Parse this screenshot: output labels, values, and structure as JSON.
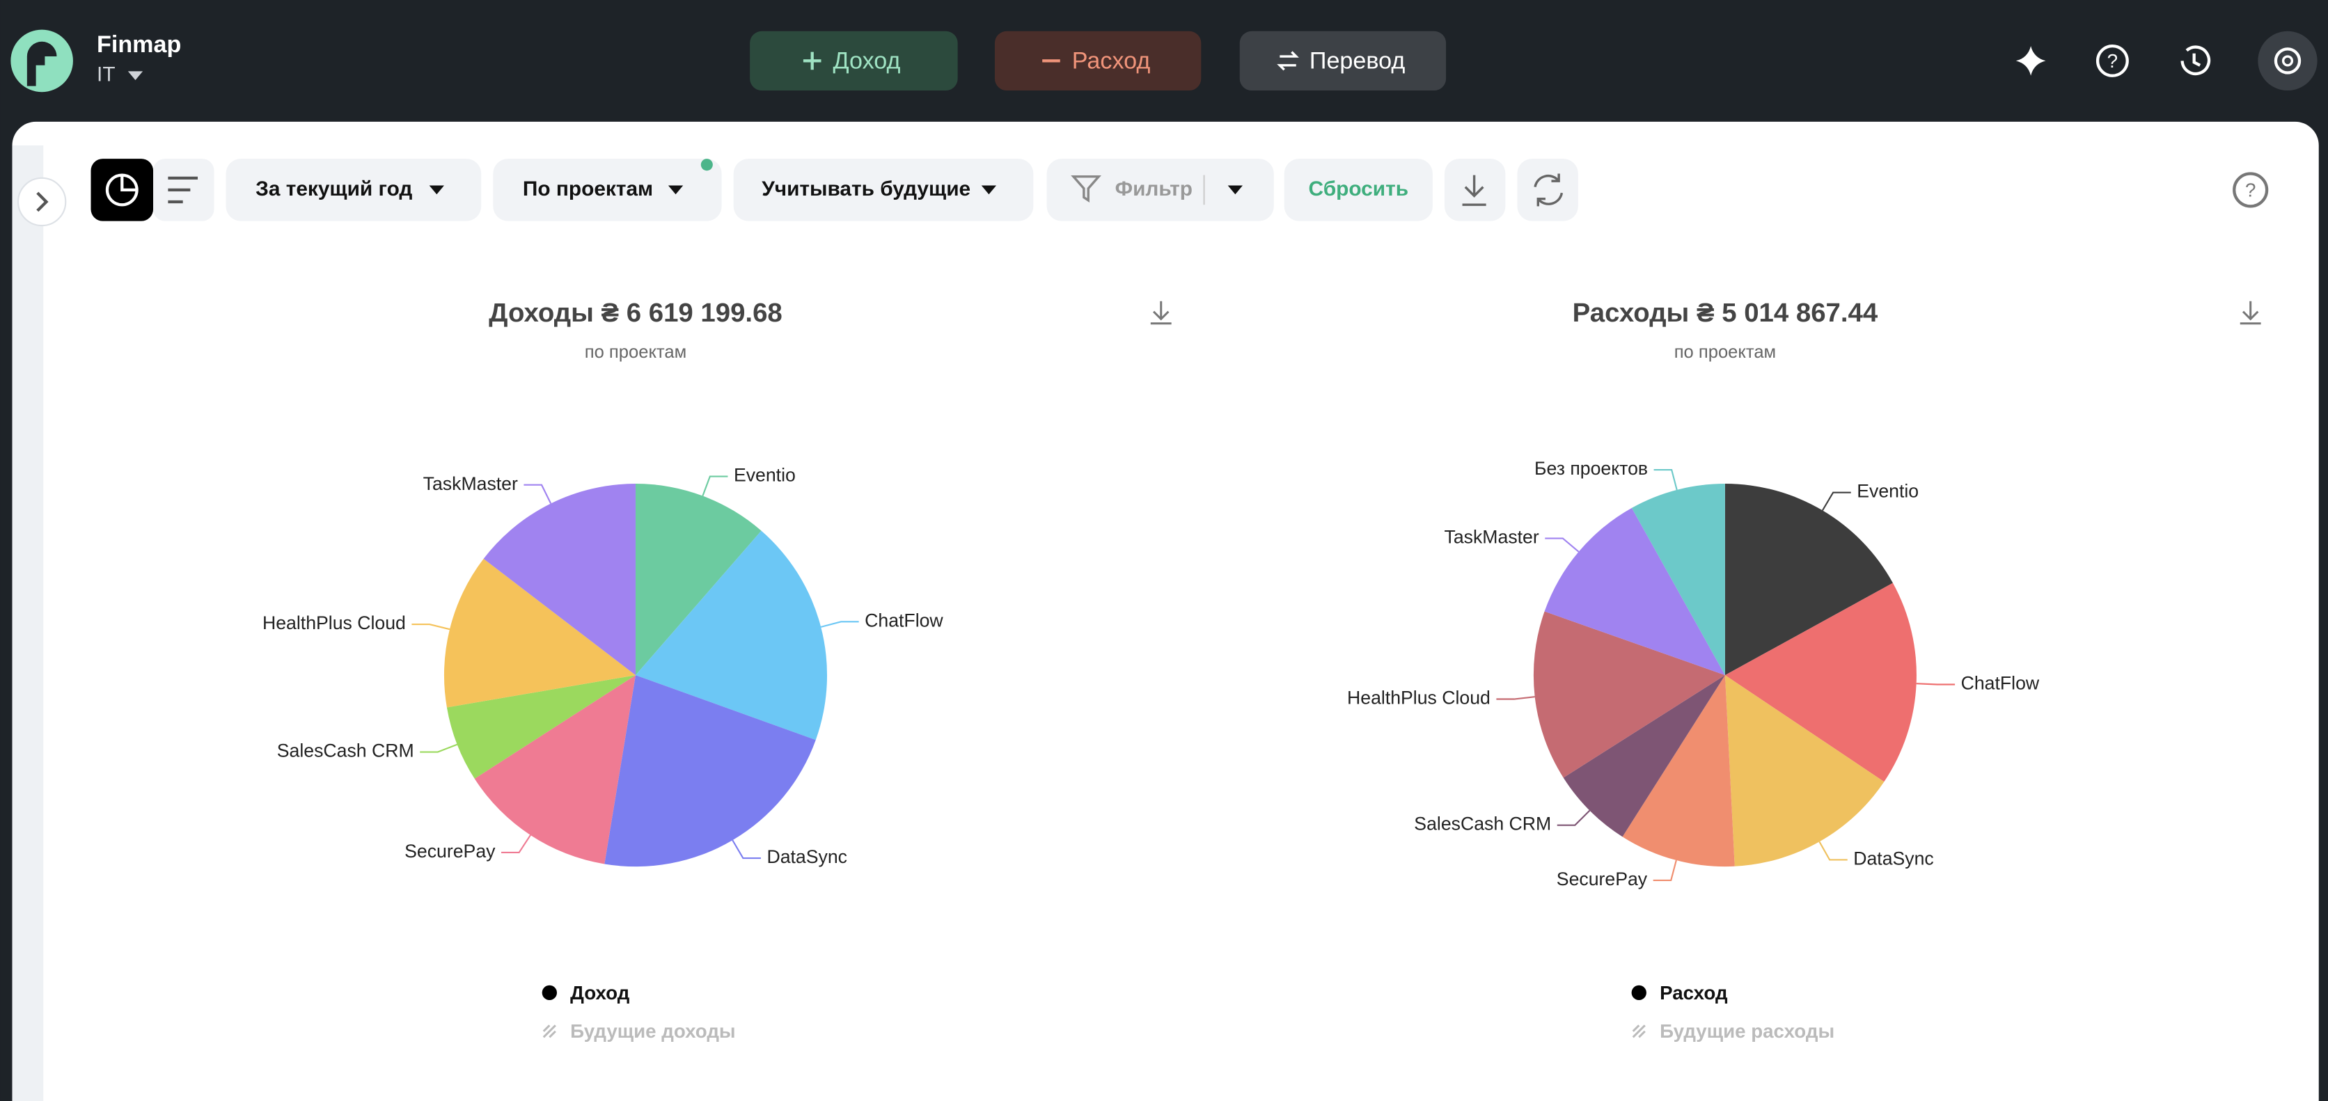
{
  "header": {
    "app_name": "Finmap",
    "workspace": "IT",
    "buttons": [
      "Доход",
      "Расход",
      "Перевод"
    ]
  },
  "toolbar": {
    "period": "За текущий год",
    "grouping": "По проектам",
    "future": "Учитывать будущие",
    "filter": "Фильтр",
    "reset": "Сбросить"
  },
  "chart_data": [
    {
      "type": "pie",
      "title": "Доходы ₴ 6 619 199.68",
      "subtitle": "по проектам",
      "categories": [
        "Eventio",
        "ChatFlow",
        "DataSync",
        "SecurePay",
        "SalesCash CRM",
        "HealthPlus Cloud",
        "TaskMaster"
      ],
      "values": [
        11.4,
        19.1,
        22.1,
        13.3,
        6.4,
        13.1,
        14.6
      ],
      "colors": [
        "#6ccba0",
        "#6cc7f5",
        "#7b7ef0",
        "#ef7b93",
        "#9bd95e",
        "#f5c25a",
        "#a083f0"
      ],
      "legend": [
        "Доход",
        "Будущие доходы"
      ]
    },
    {
      "type": "pie",
      "title": "Расходы ₴ 5 014 867.44",
      "subtitle": "по проектам",
      "categories": [
        "Eventio",
        "ChatFlow",
        "DataSync",
        "SecurePay",
        "SalesCash CRM",
        "HealthPlus Cloud",
        "TaskMaster",
        "Без проектов"
      ],
      "values": [
        17.0,
        17.4,
        14.8,
        9.8,
        7.0,
        14.4,
        11.5,
        8.1
      ],
      "colors": [
        "#3d3d3d",
        "#ee6f6f",
        "#efc15f",
        "#f08e6f",
        "#7e5574",
        "#c56b72",
        "#a083f0",
        "#6cc9c9"
      ],
      "legend": [
        "Расход",
        "Будущие расходы"
      ]
    }
  ]
}
